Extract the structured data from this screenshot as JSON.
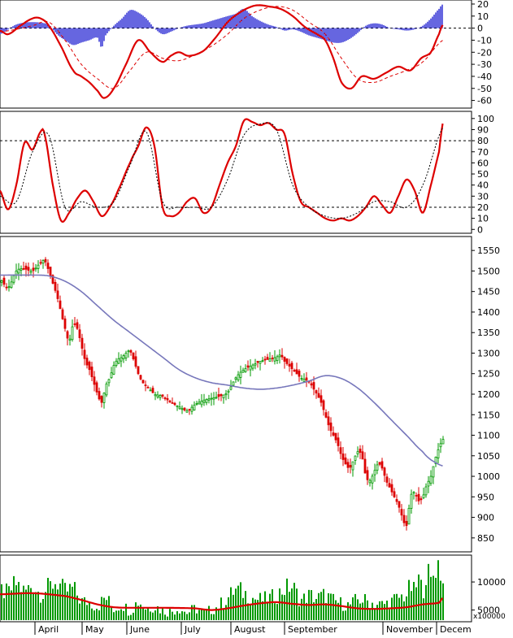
{
  "chart_data": [
    {
      "type": "line",
      "panel": "macd",
      "series": [
        {
          "kind": "histogram",
          "color": "#0000cc",
          "x": [
            0,
            20,
            40,
            60,
            70,
            80,
            90,
            100,
            110,
            120,
            125,
            130,
            140,
            150,
            160,
            170,
            180,
            190,
            200,
            210,
            220,
            230,
            240,
            250,
            260,
            270,
            280,
            290,
            300,
            310,
            320,
            330,
            340,
            350,
            360,
            370,
            380,
            390,
            400,
            410,
            420,
            430,
            440,
            450,
            460,
            470,
            480,
            490,
            500,
            510,
            520,
            530,
            540,
            545
          ],
          "values": [
            -5,
            3,
            5,
            3,
            -5,
            -10,
            -14,
            -12,
            -10,
            -8,
            -16,
            -6,
            2,
            8,
            15,
            13,
            8,
            0,
            -5,
            -3,
            0,
            2,
            3,
            4,
            6,
            8,
            10,
            12,
            16,
            10,
            6,
            3,
            1,
            -2,
            -1,
            -3,
            -6,
            -8,
            -10,
            -12,
            -12,
            -9,
            -4,
            2,
            4,
            3,
            0,
            -1,
            -2,
            -1,
            2,
            8,
            16,
            20
          ]
        },
        {
          "kind": "line",
          "name": "MACD",
          "color": "#dd0000",
          "x": [
            0,
            10,
            25,
            40,
            50,
            60,
            75,
            90,
            100,
            110,
            120,
            128,
            140,
            155,
            170,
            185,
            200,
            210,
            220,
            232,
            250,
            265,
            280,
            295,
            310,
            320,
            330,
            345,
            360,
            375,
            390,
            400,
            410,
            420,
            432,
            445,
            460,
            475,
            490,
            505,
            518,
            530,
            540,
            545
          ],
          "values": [
            -2,
            -5,
            2,
            8,
            8,
            2,
            -15,
            -35,
            -40,
            -45,
            -52,
            -58,
            -50,
            -30,
            -10,
            -20,
            -28,
            -23,
            -20,
            -23,
            -19,
            -8,
            5,
            13,
            18,
            19,
            18,
            16,
            10,
            1,
            -5,
            -10,
            -25,
            -45,
            -50,
            -40,
            -42,
            -37,
            -32,
            -35,
            -25,
            -20,
            -5,
            3
          ]
        },
        {
          "kind": "line",
          "name": "Signal",
          "color": "#dd0000",
          "dashed": true,
          "x": [
            0,
            20,
            40,
            60,
            80,
            100,
            120,
            140,
            160,
            180,
            200,
            220,
            240,
            260,
            280,
            300,
            320,
            340,
            360,
            380,
            400,
            420,
            440,
            460,
            480,
            500,
            520,
            545
          ],
          "values": [
            -3,
            -1,
            2,
            5,
            -10,
            -30,
            -42,
            -50,
            -35,
            -20,
            -25,
            -27,
            -22,
            -15,
            -5,
            8,
            15,
            18,
            15,
            5,
            -5,
            -25,
            -42,
            -45,
            -40,
            -35,
            -28,
            -10
          ]
        }
      ],
      "yticks": [
        20,
        10,
        0,
        -10,
        -20,
        -30,
        -40,
        -50,
        -60
      ],
      "ylim": [
        -65,
        22
      ],
      "reference_lines": [
        0
      ]
    },
    {
      "type": "line",
      "panel": "stochastic",
      "series": [
        {
          "kind": "line",
          "name": "%K",
          "color": "#dd0000",
          "x": [
            0,
            10,
            20,
            30,
            40,
            50,
            55,
            65,
            75,
            85,
            95,
            105,
            115,
            125,
            135,
            145,
            160,
            170,
            180,
            190,
            200,
            210,
            220,
            230,
            240,
            250,
            260,
            270,
            280,
            290,
            300,
            310,
            320,
            330,
            340,
            350,
            360,
            370,
            380,
            390,
            400,
            410,
            420,
            430,
            440,
            450,
            460,
            470,
            480,
            490,
            500,
            510,
            520,
            530,
            540,
            545
          ],
          "values": [
            35,
            18,
            40,
            78,
            72,
            88,
            85,
            40,
            8,
            15,
            28,
            35,
            25,
            12,
            20,
            35,
            60,
            75,
            92,
            75,
            20,
            12,
            15,
            25,
            28,
            15,
            20,
            40,
            60,
            75,
            98,
            97,
            94,
            96,
            90,
            86,
            50,
            25,
            20,
            15,
            10,
            8,
            10,
            8,
            12,
            20,
            30,
            22,
            15,
            30,
            45,
            35,
            15,
            40,
            70,
            97
          ]
        },
        {
          "kind": "line",
          "name": "%D",
          "color": "#000000",
          "dotted": true,
          "x": [
            0,
            20,
            40,
            60,
            80,
            100,
            120,
            140,
            160,
            180,
            200,
            220,
            240,
            260,
            280,
            300,
            320,
            340,
            360,
            380,
            400,
            420,
            440,
            460,
            480,
            500,
            520,
            545
          ],
          "values": [
            30,
            25,
            70,
            85,
            20,
            25,
            20,
            25,
            58,
            88,
            25,
            20,
            20,
            20,
            45,
            85,
            95,
            90,
            40,
            20,
            12,
            10,
            15,
            25,
            25,
            20,
            40,
            92
          ]
        }
      ],
      "yticks": [
        100,
        90,
        80,
        70,
        60,
        50,
        40,
        30,
        20,
        10,
        0
      ],
      "ylim": [
        -2,
        105
      ],
      "reference_lines": [
        80,
        20
      ]
    },
    {
      "type": "line",
      "panel": "price",
      "series": [
        {
          "kind": "candle_trace",
          "colors": {
            "up": "#009900",
            "down": "#dd0000"
          },
          "x": [
            0,
            10,
            20,
            30,
            40,
            50,
            55,
            60,
            65,
            70,
            75,
            80,
            85,
            90,
            95,
            100,
            105,
            110,
            115,
            120,
            125,
            130,
            135,
            140,
            145,
            150,
            155,
            160,
            165,
            170,
            175,
            180,
            185,
            190,
            200,
            210,
            220,
            230,
            240,
            250,
            260,
            270,
            280,
            290,
            300,
            310,
            320,
            330,
            340,
            345,
            350,
            360,
            370,
            380,
            390,
            395,
            400,
            405,
            410,
            415,
            420,
            425,
            430,
            435,
            440,
            445,
            450,
            455,
            460,
            465,
            470,
            475,
            480,
            485,
            490,
            495,
            500,
            505,
            510,
            515,
            520,
            525,
            530,
            535,
            540,
            545
          ],
          "values": [
            1480,
            1460,
            1500,
            1505,
            1500,
            1520,
            1525,
            1500,
            1470,
            1440,
            1400,
            1360,
            1330,
            1370,
            1360,
            1320,
            1280,
            1260,
            1230,
            1200,
            1180,
            1220,
            1240,
            1270,
            1285,
            1290,
            1300,
            1305,
            1280,
            1250,
            1230,
            1220,
            1210,
            1200,
            1195,
            1180,
            1170,
            1160,
            1175,
            1185,
            1190,
            1195,
            1205,
            1240,
            1260,
            1270,
            1280,
            1285,
            1290,
            1295,
            1280,
            1260,
            1240,
            1230,
            1200,
            1180,
            1150,
            1120,
            1100,
            1080,
            1050,
            1030,
            1020,
            1040,
            1060,
            1050,
            1000,
            990,
            1010,
            1030,
            1020,
            990,
            970,
            950,
            930,
            900,
            880,
            950,
            960,
            940,
            950,
            980,
            1000,
            1040,
            1070,
            1090
          ]
        },
        {
          "kind": "line",
          "name": "MA",
          "color": "#7777bb",
          "x": [
            0,
            40,
            60,
            80,
            100,
            120,
            140,
            160,
            180,
            200,
            220,
            240,
            260,
            280,
            300,
            320,
            340,
            360,
            380,
            400,
            420,
            440,
            460,
            480,
            500,
            520,
            530,
            545
          ],
          "values": [
            1490,
            1490,
            1488,
            1475,
            1450,
            1415,
            1380,
            1350,
            1320,
            1290,
            1260,
            1240,
            1228,
            1222,
            1215,
            1212,
            1215,
            1222,
            1232,
            1245,
            1238,
            1215,
            1180,
            1140,
            1100,
            1060,
            1040,
            1025
          ]
        }
      ],
      "yticks": [
        1550,
        1500,
        1450,
        1400,
        1350,
        1300,
        1250,
        1200,
        1150,
        1100,
        1050,
        1000,
        950,
        900,
        850
      ],
      "ylim": [
        820,
        1580
      ]
    },
    {
      "type": "bar",
      "panel": "volume",
      "series": [
        {
          "kind": "bars",
          "color": "#009900",
          "x": [
            0,
            10,
            20,
            30,
            40,
            50,
            60,
            70,
            80,
            90,
            100,
            110,
            120,
            130,
            140,
            150,
            160,
            170,
            180,
            190,
            200,
            210,
            220,
            230,
            240,
            250,
            260,
            270,
            280,
            290,
            300,
            310,
            320,
            330,
            340,
            350,
            360,
            370,
            380,
            390,
            400,
            410,
            420,
            430,
            440,
            450,
            460,
            470,
            480,
            490,
            500,
            505,
            510,
            515,
            520,
            525,
            530,
            535,
            540,
            545
          ],
          "values": [
            9000,
            8500,
            10200,
            8800,
            9800,
            8400,
            9500,
            10500,
            8800,
            9200,
            7000,
            6800,
            6000,
            7500,
            5500,
            6300,
            5200,
            6800,
            5600,
            6000,
            5200,
            5000,
            5600,
            4800,
            5500,
            4900,
            5300,
            6200,
            7500,
            9000,
            8500,
            7600,
            7200,
            7400,
            8000,
            9200,
            9500,
            7200,
            8000,
            7500,
            8000,
            7000,
            6500,
            6200,
            7200,
            7000,
            6500,
            6300,
            6800,
            7500,
            8200,
            9500,
            8800,
            11000,
            9000,
            12500,
            10500,
            13000,
            13800,
            10000
          ]
        },
        {
          "kind": "line",
          "name": "Volume MA",
          "color": "#dd0000",
          "x": [
            0,
            40,
            80,
            100,
            120,
            140,
            160,
            200,
            240,
            260,
            280,
            300,
            320,
            340,
            360,
            380,
            400,
            420,
            440,
            460,
            480,
            500,
            520,
            540,
            545
          ],
          "values": [
            7800,
            8000,
            7500,
            6800,
            6000,
            5500,
            5400,
            5400,
            5300,
            5000,
            5300,
            5800,
            6200,
            6400,
            6100,
            5900,
            6000,
            5700,
            5300,
            5200,
            5300,
            5500,
            6000,
            6300,
            7200
          ]
        }
      ],
      "yticks": [
        10000,
        5000
      ],
      "ylim": [
        3200,
        14500
      ],
      "scale_label": "x100000"
    }
  ],
  "xaxis": {
    "months": [
      {
        "label": "April",
        "x": 47
      },
      {
        "label": "May",
        "x": 105
      },
      {
        "label": "June",
        "x": 160
      },
      {
        "label": "July",
        "x": 227
      },
      {
        "label": "August",
        "x": 288
      },
      {
        "label": "September",
        "x": 354
      },
      {
        "label": "November",
        "x": 475
      },
      {
        "label": "Decem",
        "x": 541
      }
    ]
  }
}
